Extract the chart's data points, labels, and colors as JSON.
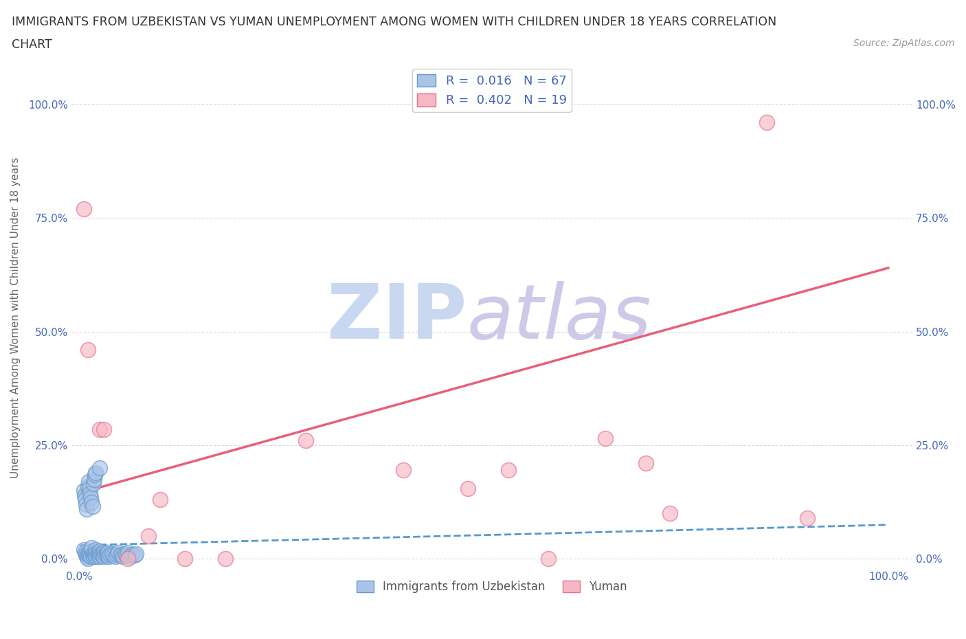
{
  "title_line1": "IMMIGRANTS FROM UZBEKISTAN VS YUMAN UNEMPLOYMENT AMONG WOMEN WITH CHILDREN UNDER 18 YEARS CORRELATION",
  "title_line2": "CHART",
  "source": "Source: ZipAtlas.com",
  "ylabel": "Unemployment Among Women with Children Under 18 years",
  "blue_R": "0.016",
  "blue_N": "67",
  "pink_R": "0.402",
  "pink_N": "19",
  "blue_color": "#aac4e8",
  "pink_color": "#f5b8c4",
  "blue_edge_color": "#6699cc",
  "pink_edge_color": "#e87090",
  "blue_line_color": "#5599cc",
  "pink_line_color": "#e8607a",
  "legend_text_color": "#4466bb",
  "watermark_zip_color": "#c8d8f0",
  "watermark_atlas_color": "#d0c8e8",
  "blue_scatter_x": [
    0.005,
    0.007,
    0.008,
    0.009,
    0.01,
    0.01,
    0.011,
    0.012,
    0.013,
    0.014,
    0.015,
    0.015,
    0.016,
    0.017,
    0.018,
    0.019,
    0.02,
    0.02,
    0.021,
    0.022,
    0.023,
    0.024,
    0.025,
    0.025,
    0.026,
    0.027,
    0.028,
    0.03,
    0.03,
    0.032,
    0.033,
    0.034,
    0.035,
    0.036,
    0.038,
    0.04,
    0.042,
    0.044,
    0.046,
    0.048,
    0.05,
    0.052,
    0.054,
    0.056,
    0.058,
    0.06,
    0.062,
    0.065,
    0.068,
    0.07,
    0.005,
    0.006,
    0.007,
    0.008,
    0.009,
    0.01,
    0.011,
    0.012,
    0.013,
    0.014,
    0.015,
    0.016,
    0.017,
    0.018,
    0.019,
    0.02,
    0.025
  ],
  "blue_scatter_y": [
    0.02,
    0.015,
    0.01,
    0.005,
    0.0,
    0.01,
    0.015,
    0.008,
    0.012,
    0.005,
    0.018,
    0.025,
    0.01,
    0.005,
    0.015,
    0.008,
    0.02,
    0.012,
    0.005,
    0.01,
    0.015,
    0.008,
    0.018,
    0.005,
    0.012,
    0.01,
    0.008,
    0.015,
    0.005,
    0.01,
    0.012,
    0.008,
    0.015,
    0.005,
    0.01,
    0.012,
    0.008,
    0.005,
    0.01,
    0.015,
    0.008,
    0.01,
    0.005,
    0.012,
    0.008,
    0.015,
    0.005,
    0.01,
    0.008,
    0.012,
    0.15,
    0.14,
    0.13,
    0.12,
    0.11,
    0.16,
    0.17,
    0.155,
    0.145,
    0.135,
    0.125,
    0.115,
    0.165,
    0.175,
    0.185,
    0.19,
    0.2
  ],
  "pink_scatter_x": [
    0.005,
    0.025,
    0.03,
    0.085,
    0.1,
    0.13,
    0.18,
    0.28,
    0.48,
    0.53,
    0.58,
    0.65,
    0.7,
    0.73,
    0.85,
    0.9,
    0.01,
    0.06,
    0.4
  ],
  "pink_scatter_y": [
    0.77,
    0.285,
    0.285,
    0.05,
    0.13,
    0.0,
    0.0,
    0.26,
    0.155,
    0.195,
    0.0,
    0.265,
    0.21,
    0.1,
    0.96,
    0.09,
    0.46,
    0.0,
    0.195
  ],
  "blue_trendline_x": [
    0.0,
    1.0
  ],
  "blue_trendline_y": [
    0.03,
    0.075
  ],
  "pink_trendline_x": [
    0.0,
    1.0
  ],
  "pink_trendline_y": [
    0.145,
    0.64
  ],
  "ytick_values": [
    0.0,
    0.25,
    0.5,
    0.75,
    1.0
  ],
  "ytick_labels": [
    "0.0%",
    "25.0%",
    "50.0%",
    "75.0%",
    "100.0%"
  ],
  "xtick_left_label": "0.0%",
  "xtick_right_label": "100.0%",
  "grid_color": "#cccccc",
  "bg_color": "#ffffff",
  "xlim": [
    -0.01,
    1.03
  ],
  "ylim": [
    -0.02,
    1.08
  ]
}
